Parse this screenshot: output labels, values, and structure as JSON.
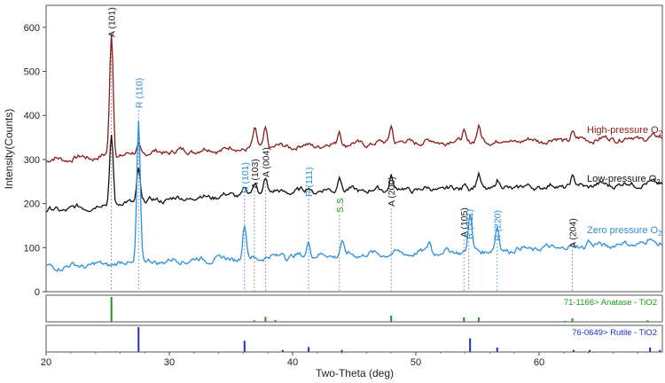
{
  "chart_data": {
    "type": "line",
    "xlabel": "Two-Theta (deg)",
    "ylabel": "Intensity(Counts)",
    "xlim": [
      20,
      70
    ],
    "ylim": [
      0,
      650
    ],
    "x_ticks": [
      "20",
      "30",
      "40",
      "50",
      "60"
    ],
    "y_ticks": [
      "0",
      "100",
      "200",
      "300",
      "400",
      "500",
      "600"
    ],
    "grid": false,
    "colors": {
      "high": "#8b1a1a",
      "low": "#111111",
      "zero": "#2d8fdc",
      "anatase": "#1a9a1a",
      "rutile": "#1f2fc8",
      "ref_line": "#7a7aa0"
    },
    "series": [
      {
        "name": "High-pressure O",
        "subscript": "2",
        "color": "#8b1a1a",
        "baseline": [
          [
            20,
            298
          ],
          [
            30,
            318
          ],
          [
            40,
            330
          ],
          [
            50,
            340
          ],
          [
            60,
            343
          ],
          [
            70,
            350
          ]
        ],
        "peaks": [
          [
            25.3,
            280
          ],
          [
            27.5,
            20
          ],
          [
            36.9,
            25
          ],
          [
            37.0,
            15
          ],
          [
            37.8,
            45
          ],
          [
            43.8,
            35
          ],
          [
            48.0,
            42
          ],
          [
            53.9,
            25
          ],
          [
            55.1,
            30
          ],
          [
            62.7,
            18
          ]
        ]
      },
      {
        "name": "Low-pressure O",
        "subscript": "2",
        "color": "#111111",
        "baseline": [
          [
            20,
            183
          ],
          [
            30,
            210
          ],
          [
            40,
            228
          ],
          [
            50,
            232
          ],
          [
            60,
            238
          ],
          [
            70,
            246
          ]
        ],
        "peaks": [
          [
            25.3,
            160
          ],
          [
            27.5,
            80
          ],
          [
            36.1,
            15
          ],
          [
            37.0,
            25
          ],
          [
            37.8,
            38
          ],
          [
            41.3,
            10
          ],
          [
            43.8,
            40
          ],
          [
            48.0,
            35
          ],
          [
            54.0,
            18
          ],
          [
            55.1,
            28
          ],
          [
            56.6,
            15
          ],
          [
            62.7,
            18
          ]
        ]
      },
      {
        "name": "Zero pressure O",
        "subscript": "2",
        "color": "#2d8fdc",
        "baseline": [
          [
            20,
            55
          ],
          [
            30,
            70
          ],
          [
            40,
            80
          ],
          [
            50,
            88
          ],
          [
            60,
            98
          ],
          [
            70,
            112
          ]
        ],
        "peaks": [
          [
            27.5,
            320
          ],
          [
            36.1,
            75
          ],
          [
            39.2,
            15
          ],
          [
            41.3,
            35
          ],
          [
            44.0,
            30
          ],
          [
            51.1,
            25
          ],
          [
            54.4,
            85
          ],
          [
            56.6,
            50
          ],
          [
            64.0,
            15
          ],
          [
            69.0,
            10
          ]
        ]
      }
    ],
    "peak_labels": [
      {
        "text": "A (101)",
        "x": 25.3,
        "phase": "A",
        "guide": true
      },
      {
        "text": "R (110)",
        "x": 27.5,
        "phase": "R",
        "guide": true
      },
      {
        "text": "R (101)",
        "x": 36.1,
        "phase": "R",
        "guide": true
      },
      {
        "text": "A (103)",
        "x": 36.9,
        "phase": "A",
        "guide": true
      },
      {
        "text": "A (004)",
        "x": 37.8,
        "phase": "A",
        "guide": true
      },
      {
        "text": "R (111)",
        "x": 41.3,
        "phase": "R",
        "guide": true
      },
      {
        "text": "S.S",
        "x": 43.8,
        "phase": "S",
        "guide": true
      },
      {
        "text": "A (200)",
        "x": 48.0,
        "phase": "A",
        "guide": true
      },
      {
        "text": "A (105)",
        "x": 53.9,
        "phase": "A",
        "guide": true
      },
      {
        "text": "R (211)",
        "x": 54.3,
        "phase": "R",
        "guide": true
      },
      {
        "text": "R (220)",
        "x": 56.6,
        "phase": "R",
        "guide": true
      },
      {
        "text": "A (204)",
        "x": 62.7,
        "phase": "A",
        "guide": true
      }
    ],
    "reference_patterns": [
      {
        "label": "71-1166> Anatase - TiO2",
        "color": "#1a9a1a",
        "lines": [
          [
            25.3,
            1.0
          ],
          [
            36.9,
            0.06
          ],
          [
            37.8,
            0.2
          ],
          [
            38.6,
            0.07
          ],
          [
            48.0,
            0.25
          ],
          [
            53.9,
            0.18
          ],
          [
            55.1,
            0.18
          ],
          [
            62.1,
            0.04
          ],
          [
            62.7,
            0.14
          ],
          [
            68.8,
            0.06
          ],
          [
            70.3,
            0.06
          ]
        ]
      },
      {
        "label": "76-0649> Rutile - TiO2",
        "color": "#1f2fc8",
        "lines": [
          [
            27.5,
            1.0
          ],
          [
            36.1,
            0.45
          ],
          [
            39.2,
            0.08
          ],
          [
            41.3,
            0.2
          ],
          [
            44.0,
            0.08
          ],
          [
            54.4,
            0.55
          ],
          [
            56.6,
            0.18
          ],
          [
            62.8,
            0.08
          ],
          [
            64.1,
            0.08
          ],
          [
            69.0,
            0.18
          ],
          [
            69.8,
            0.08
          ]
        ]
      }
    ]
  }
}
